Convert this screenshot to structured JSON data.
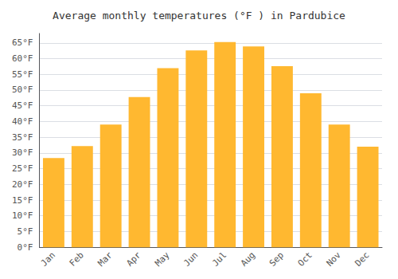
{
  "chart_data": {
    "type": "bar",
    "title": "Average monthly temperatures (°F ) in Pardubice",
    "categories": [
      "Jan",
      "Feb",
      "Mar",
      "Apr",
      "May",
      "Jun",
      "Jul",
      "Aug",
      "Sep",
      "Oct",
      "Nov",
      "Dec"
    ],
    "values": [
      28.4,
      32.2,
      39.0,
      47.8,
      57.0,
      62.6,
      65.3,
      63.9,
      57.6,
      49.0,
      39.0,
      32.0
    ],
    "color": "#FFB830",
    "ylim": [
      0,
      68
    ],
    "yticks": [
      {
        "value": 0,
        "label": "0°F"
      },
      {
        "value": 5,
        "label": "5°F"
      },
      {
        "value": 10,
        "label": "10°F"
      },
      {
        "value": 15,
        "label": "15°F"
      },
      {
        "value": 20,
        "label": "20°F"
      },
      {
        "value": 25,
        "label": "25°F"
      },
      {
        "value": 30,
        "label": "30°F"
      },
      {
        "value": 35,
        "label": "35°F"
      },
      {
        "value": 40,
        "label": "40°F"
      },
      {
        "value": 45,
        "label": "45°F"
      },
      {
        "value": 50,
        "label": "50°F"
      },
      {
        "value": 55,
        "label": "55°F"
      },
      {
        "value": 60,
        "label": "60°F"
      },
      {
        "value": 65,
        "label": "65°F"
      }
    ],
    "grid": true
  }
}
